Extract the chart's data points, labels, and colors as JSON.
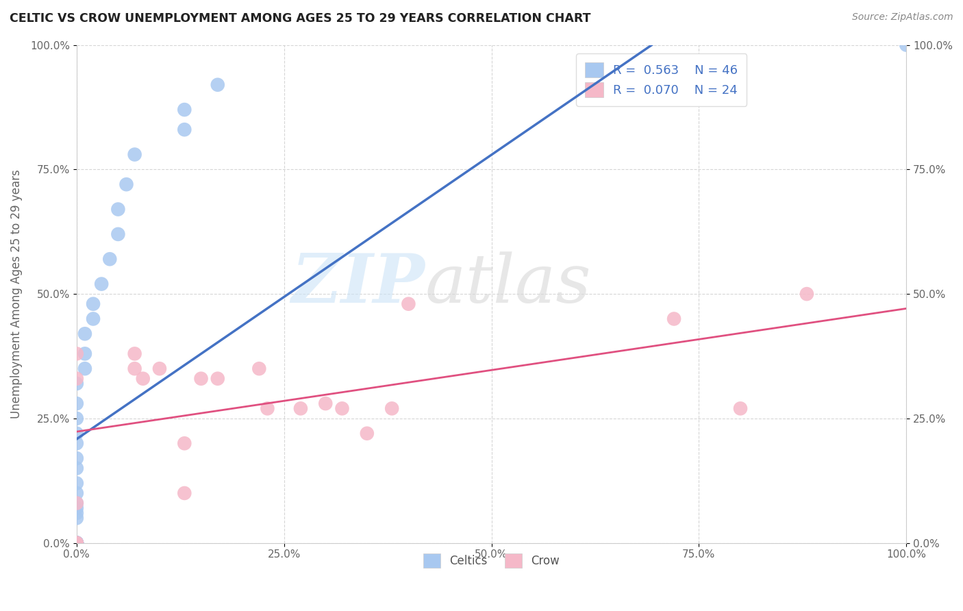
{
  "title": "CELTIC VS CROW UNEMPLOYMENT AMONG AGES 25 TO 29 YEARS CORRELATION CHART",
  "source": "Source: ZipAtlas.com",
  "ylabel": "Unemployment Among Ages 25 to 29 years",
  "xlim": [
    0,
    1.0
  ],
  "ylim": [
    0,
    1.0
  ],
  "xticks": [
    0.0,
    0.25,
    0.5,
    0.75,
    1.0
  ],
  "yticks": [
    0.0,
    0.25,
    0.5,
    0.75,
    1.0
  ],
  "xticklabels": [
    "0.0%",
    "25.0%",
    "50.0%",
    "75.0%",
    "100.0%"
  ],
  "yticklabels": [
    "0.0%",
    "25.0%",
    "50.0%",
    "75.0%",
    "100.0%"
  ],
  "celtics_color": "#a8c8f0",
  "crow_color": "#f5b8c8",
  "celtics_line_color": "#4472c4",
  "crow_line_color": "#e05080",
  "celtics_R": 0.563,
  "celtics_N": 46,
  "crow_R": 0.07,
  "crow_N": 24,
  "celtics_x": [
    0.0,
    0.0,
    0.0,
    0.0,
    0.0,
    0.0,
    0.0,
    0.0,
    0.0,
    0.0,
    0.0,
    0.0,
    0.0,
    0.0,
    0.0,
    0.0,
    0.0,
    0.0,
    0.0,
    0.0,
    0.0,
    0.0,
    0.0,
    0.0,
    0.0,
    0.0,
    0.0,
    0.0,
    0.0,
    0.0,
    0.0,
    0.01,
    0.01,
    0.01,
    0.02,
    0.02,
    0.03,
    0.04,
    0.05,
    0.05,
    0.06,
    0.07,
    0.13,
    0.13,
    0.17,
    1.0
  ],
  "celtics_y": [
    0.0,
    0.0,
    0.0,
    0.0,
    0.0,
    0.0,
    0.0,
    0.0,
    0.0,
    0.0,
    0.0,
    0.0,
    0.0,
    0.0,
    0.0,
    0.0,
    0.0,
    0.0,
    0.05,
    0.06,
    0.07,
    0.08,
    0.1,
    0.12,
    0.15,
    0.17,
    0.2,
    0.22,
    0.25,
    0.28,
    0.32,
    0.35,
    0.38,
    0.42,
    0.45,
    0.48,
    0.52,
    0.57,
    0.62,
    0.67,
    0.72,
    0.78,
    0.83,
    0.87,
    0.92,
    1.0
  ],
  "crow_x": [
    0.0,
    0.0,
    0.0,
    0.0,
    0.0,
    0.07,
    0.07,
    0.08,
    0.1,
    0.13,
    0.13,
    0.15,
    0.17,
    0.22,
    0.23,
    0.27,
    0.3,
    0.32,
    0.35,
    0.38,
    0.4,
    0.72,
    0.8,
    0.88
  ],
  "crow_y": [
    0.0,
    0.0,
    0.08,
    0.33,
    0.38,
    0.35,
    0.38,
    0.33,
    0.35,
    0.2,
    0.1,
    0.33,
    0.33,
    0.35,
    0.27,
    0.27,
    0.28,
    0.27,
    0.22,
    0.27,
    0.48,
    0.45,
    0.27,
    0.5
  ],
  "legend_label_celtics": "Celtics",
  "legend_label_crow": "Crow",
  "background_color": "#ffffff",
  "grid_color": "#cccccc"
}
